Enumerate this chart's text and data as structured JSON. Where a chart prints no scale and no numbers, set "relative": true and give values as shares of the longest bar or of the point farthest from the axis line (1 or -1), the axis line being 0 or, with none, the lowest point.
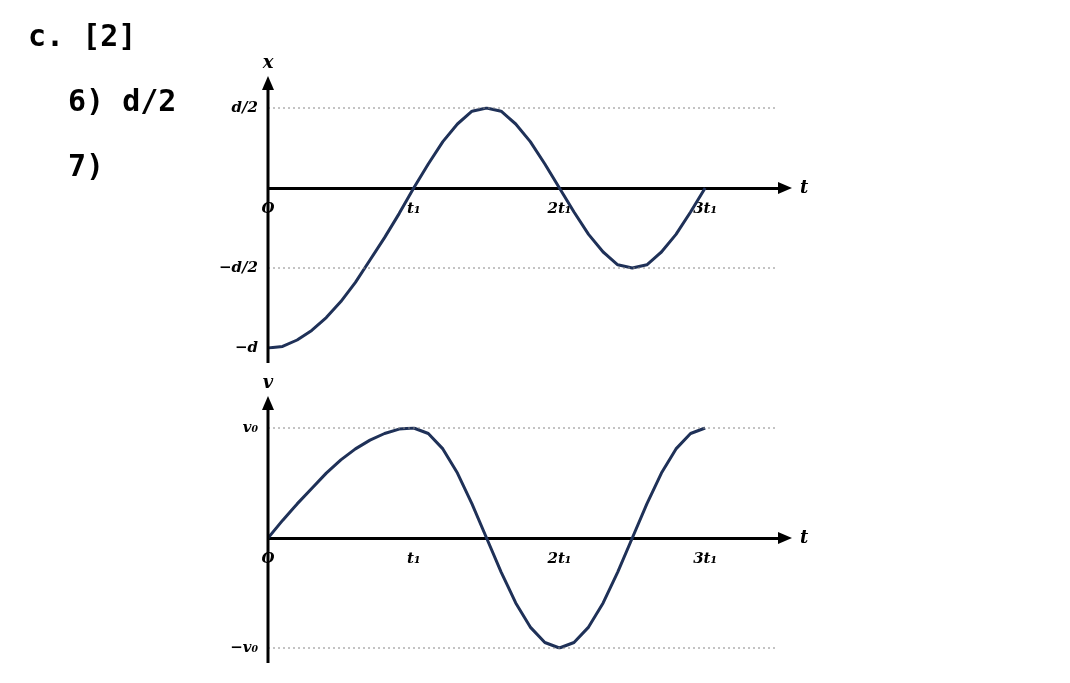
{
  "chart_data": [
    {
      "type": "line",
      "xlabel": "t",
      "ylabel": "x",
      "relative": true,
      "annotations": [
        "c.  [2]",
        "6) d/2",
        "7)",
        {
          "text": "−d",
          "x": 0,
          "y": -1
        }
      ],
      "x": [
        0,
        0.1,
        0.2,
        0.3,
        0.4,
        0.5,
        0.6,
        0.7,
        0.8,
        0.9,
        1,
        1.1,
        1.2,
        1.3,
        1.4,
        1.5,
        1.6,
        1.7,
        1.8,
        1.9,
        2,
        2.1,
        2.2,
        2.3,
        2.4,
        2.5,
        2.6,
        2.7,
        2.8,
        2.9,
        3
      ],
      "series": [
        {
          "color": "#1f3158",
          "values": [
            -1,
            -0.99,
            -0.95,
            -0.89,
            -0.81,
            -0.71,
            -0.59,
            -0.45,
            -0.31,
            -0.16,
            0,
            0.15,
            0.29,
            0.4,
            0.48,
            0.5,
            0.48,
            0.4,
            0.29,
            0.15,
            0,
            -0.15,
            -0.29,
            -0.4,
            -0.48,
            -0.5,
            -0.48,
            -0.4,
            -0.29,
            -0.15,
            0
          ]
        }
      ],
      "xlim": [
        0,
        3.5
      ],
      "xticks": [
        {
          "value": 0,
          "label": "O"
        },
        {
          "value": 1,
          "label": "t₁"
        },
        {
          "value": 2,
          "label": "2t₁"
        },
        {
          "value": 3,
          "label": "3t₁"
        }
      ],
      "ref_lines": [
        {
          "axis": "y",
          "value": 0.5,
          "label": "d/2",
          "color": "#888888",
          "line_style": "dotted"
        },
        {
          "axis": "y",
          "value": -0.5,
          "label": "−d/2",
          "color": "#888888",
          "line_style": "dotted"
        }
      ],
      "grid": false,
      "legend": false,
      "marker": "none",
      "line_style": "solid"
    },
    {
      "type": "line",
      "xlabel": "t",
      "ylabel": "v",
      "relative": true,
      "x": [
        0,
        0.1,
        0.2,
        0.3,
        0.4,
        0.5,
        0.6,
        0.7,
        0.8,
        0.9,
        1,
        1.1,
        1.2,
        1.3,
        1.4,
        1.5,
        1.6,
        1.7,
        1.8,
        1.9,
        2,
        2.1,
        2.2,
        2.3,
        2.4,
        2.5,
        2.6,
        2.7,
        2.8,
        2.9,
        3
      ],
      "series": [
        {
          "color": "#1f3158",
          "values": [
            0,
            0.16,
            0.31,
            0.45,
            0.59,
            0.71,
            0.81,
            0.89,
            0.95,
            0.99,
            1,
            0.95,
            0.81,
            0.59,
            0.31,
            0,
            -0.31,
            -0.59,
            -0.81,
            -0.95,
            -1,
            -0.95,
            -0.81,
            -0.59,
            -0.31,
            0,
            0.31,
            0.59,
            0.81,
            0.95,
            1
          ]
        }
      ],
      "xlim": [
        0,
        3.5
      ],
      "xticks": [
        {
          "value": 0,
          "label": "O"
        },
        {
          "value": 1,
          "label": "t₁"
        },
        {
          "value": 2,
          "label": "2t₁"
        },
        {
          "value": 3,
          "label": "3t₁"
        }
      ],
      "ref_lines": [
        {
          "axis": "y",
          "value": 1,
          "label": "v₀",
          "color": "#888888",
          "line_style": "dotted"
        },
        {
          "axis": "y",
          "value": -1,
          "label": "−v₀",
          "color": "#888888",
          "line_style": "dotted"
        }
      ],
      "grid": false,
      "legend": false,
      "marker": "none",
      "line_style": "solid"
    }
  ]
}
